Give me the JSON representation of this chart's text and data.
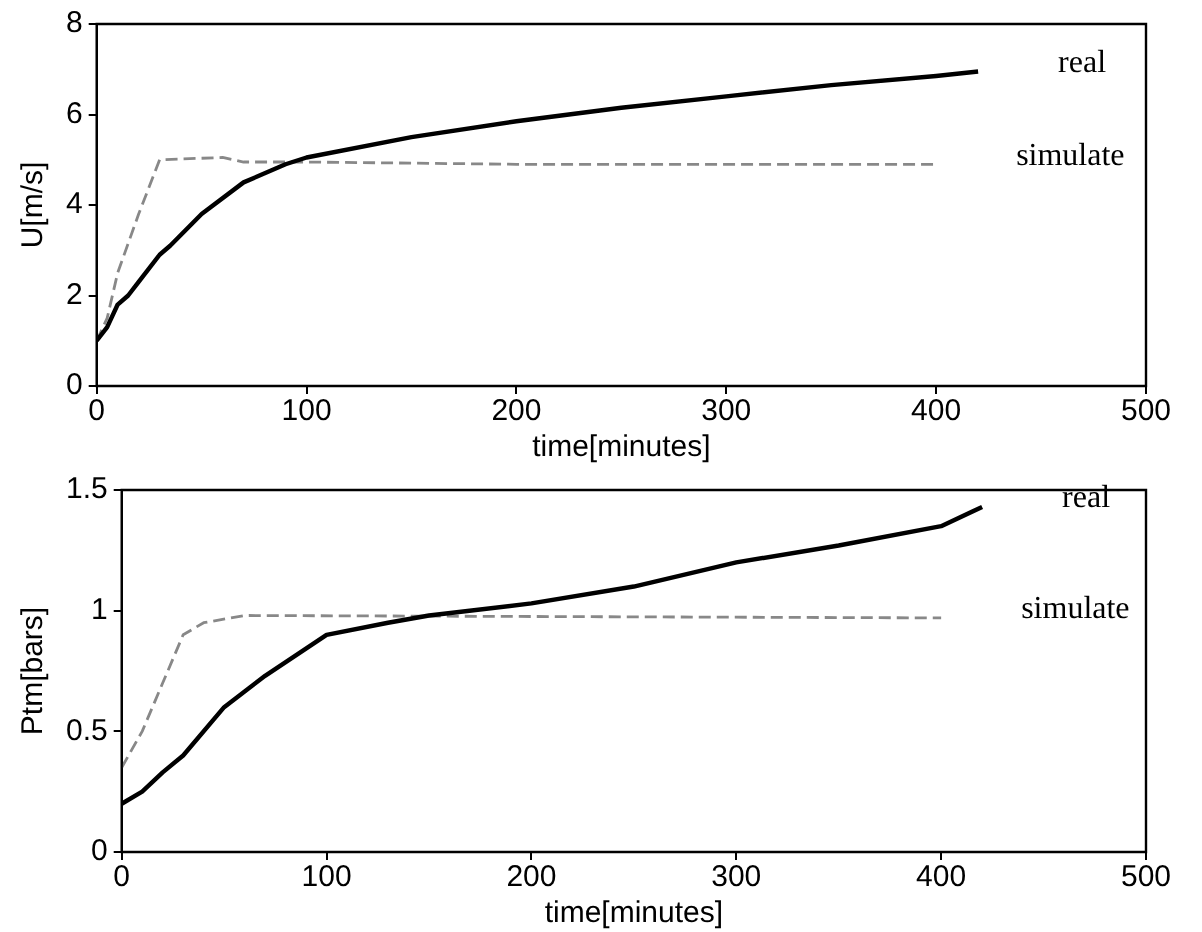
{
  "chart_data": [
    {
      "type": "line",
      "xlabel": "time[minutes]",
      "ylabel": "U[m/s]",
      "xlim": [
        0,
        500
      ],
      "xticks": [
        0,
        100,
        200,
        300,
        400,
        500
      ],
      "ylim": [
        0,
        8
      ],
      "yticks": [
        0,
        2,
        4,
        6,
        8
      ],
      "grid": false,
      "legend": false,
      "marker": "none",
      "series": [
        {
          "name": "real",
          "color": "#000000",
          "line_style": "solid",
          "x": [
            0,
            5,
            10,
            15,
            20,
            30,
            35,
            50,
            70,
            90,
            100,
            150,
            200,
            250,
            300,
            350,
            400,
            420
          ],
          "values": [
            1.0,
            1.3,
            1.8,
            2.0,
            2.3,
            2.9,
            3.1,
            3.8,
            4.5,
            4.9,
            5.05,
            5.5,
            5.85,
            6.15,
            6.4,
            6.65,
            6.85,
            6.95
          ]
        },
        {
          "name": "simulate",
          "color": "#888888",
          "line_style": "dashed",
          "x": [
            0,
            5,
            10,
            20,
            30,
            60,
            70,
            100,
            200,
            300,
            400
          ],
          "values": [
            1.0,
            1.5,
            2.5,
            3.8,
            5.0,
            5.05,
            4.95,
            4.95,
            4.9,
            4.9,
            4.9
          ]
        }
      ]
    },
    {
      "type": "line",
      "xlabel": "time[minutes]",
      "ylabel": "Ptm[bars]",
      "xlim": [
        0,
        500
      ],
      "xticks": [
        0,
        100,
        200,
        300,
        400,
        500
      ],
      "ylim": [
        0,
        1.5
      ],
      "yticks": [
        0,
        0.5,
        1,
        1.5
      ],
      "grid": false,
      "legend": false,
      "marker": "none",
      "series": [
        {
          "name": "real",
          "color": "#000000",
          "line_style": "solid",
          "x": [
            0,
            10,
            20,
            30,
            50,
            70,
            100,
            130,
            150,
            200,
            250,
            300,
            350,
            400,
            420
          ],
          "values": [
            0.2,
            0.25,
            0.33,
            0.4,
            0.6,
            0.73,
            0.9,
            0.95,
            0.98,
            1.03,
            1.1,
            1.2,
            1.27,
            1.35,
            1.43
          ]
        },
        {
          "name": "simulate",
          "color": "#888888",
          "line_style": "dashed",
          "x": [
            0,
            10,
            20,
            30,
            40,
            60,
            400
          ],
          "values": [
            0.35,
            0.5,
            0.7,
            0.9,
            0.95,
            0.98,
            0.97
          ]
        }
      ]
    }
  ]
}
